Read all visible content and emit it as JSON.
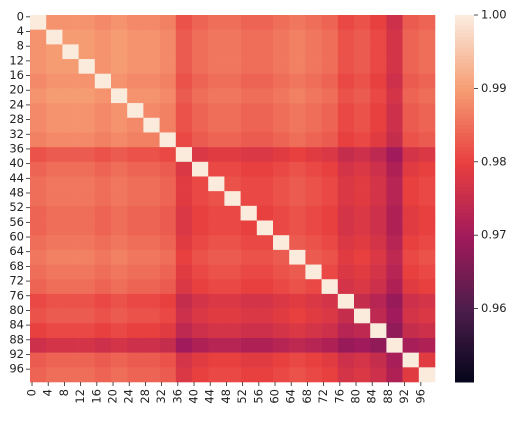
{
  "chart_data": {
    "type": "heatmap",
    "categories": [
      0,
      4,
      8,
      12,
      16,
      20,
      24,
      28,
      32,
      36,
      40,
      44,
      48,
      52,
      56,
      60,
      64,
      68,
      72,
      76,
      80,
      84,
      88,
      92,
      96
    ],
    "values": [
      [
        1,
        0.989,
        0.989,
        0.989,
        0.988,
        0.989,
        0.988,
        0.988,
        0.987,
        0.982,
        0.984,
        0.985,
        0.985,
        0.984,
        0.984,
        0.985,
        0.986,
        0.985,
        0.984,
        0.981,
        0.982,
        0.98,
        0.976,
        0.983,
        0.984
      ],
      [
        0.989,
        1,
        0.99,
        0.99,
        0.989,
        0.99,
        0.989,
        0.989,
        0.988,
        0.983,
        0.985,
        0.986,
        0.986,
        0.985,
        0.985,
        0.986,
        0.987,
        0.986,
        0.985,
        0.982,
        0.983,
        0.981,
        0.977,
        0.984,
        0.985
      ],
      [
        0.989,
        0.99,
        1,
        0.99,
        0.989,
        0.99,
        0.989,
        0.989,
        0.988,
        0.983,
        0.985,
        0.986,
        0.986,
        0.985,
        0.985,
        0.986,
        0.987,
        0.986,
        0.985,
        0.982,
        0.983,
        0.981,
        0.977,
        0.984,
        0.985
      ],
      [
        0.989,
        0.99,
        0.99,
        1,
        0.989,
        0.99,
        0.989,
        0.989,
        0.988,
        0.983,
        0.985,
        0.986,
        0.986,
        0.985,
        0.985,
        0.986,
        0.987,
        0.986,
        0.985,
        0.982,
        0.983,
        0.981,
        0.977,
        0.984,
        0.985
      ],
      [
        0.988,
        0.989,
        0.989,
        0.989,
        1,
        0.989,
        0.988,
        0.988,
        0.987,
        0.982,
        0.984,
        0.985,
        0.985,
        0.984,
        0.984,
        0.985,
        0.986,
        0.985,
        0.984,
        0.981,
        0.982,
        0.98,
        0.976,
        0.983,
        0.984
      ],
      [
        0.989,
        0.99,
        0.99,
        0.99,
        0.989,
        1,
        0.989,
        0.989,
        0.988,
        0.983,
        0.985,
        0.986,
        0.986,
        0.985,
        0.985,
        0.986,
        0.987,
        0.986,
        0.985,
        0.982,
        0.983,
        0.981,
        0.977,
        0.984,
        0.985
      ],
      [
        0.988,
        0.989,
        0.989,
        0.989,
        0.988,
        0.989,
        1,
        0.988,
        0.987,
        0.982,
        0.984,
        0.985,
        0.985,
        0.984,
        0.984,
        0.985,
        0.986,
        0.985,
        0.984,
        0.981,
        0.982,
        0.98,
        0.976,
        0.983,
        0.984
      ],
      [
        0.988,
        0.989,
        0.989,
        0.989,
        0.988,
        0.989,
        0.988,
        1,
        0.987,
        0.982,
        0.984,
        0.985,
        0.985,
        0.984,
        0.984,
        0.985,
        0.986,
        0.985,
        0.984,
        0.981,
        0.982,
        0.98,
        0.976,
        0.983,
        0.984
      ],
      [
        0.987,
        0.988,
        0.988,
        0.988,
        0.987,
        0.988,
        0.987,
        0.987,
        1,
        0.981,
        0.983,
        0.984,
        0.984,
        0.983,
        0.983,
        0.984,
        0.985,
        0.984,
        0.983,
        0.98,
        0.981,
        0.979,
        0.975,
        0.982,
        0.983
      ],
      [
        0.982,
        0.983,
        0.983,
        0.983,
        0.982,
        0.983,
        0.982,
        0.982,
        0.981,
        1,
        0.978,
        0.979,
        0.979,
        0.978,
        0.978,
        0.979,
        0.98,
        0.979,
        0.978,
        0.975,
        0.976,
        0.974,
        0.97,
        0.977,
        0.978
      ],
      [
        0.984,
        0.985,
        0.985,
        0.985,
        0.984,
        0.985,
        0.984,
        0.984,
        0.983,
        0.978,
        1,
        0.981,
        0.981,
        0.98,
        0.98,
        0.981,
        0.982,
        0.981,
        0.98,
        0.977,
        0.978,
        0.976,
        0.972,
        0.979,
        0.98
      ],
      [
        0.985,
        0.986,
        0.986,
        0.986,
        0.985,
        0.986,
        0.985,
        0.985,
        0.984,
        0.979,
        0.981,
        1,
        0.982,
        0.981,
        0.981,
        0.982,
        0.983,
        0.982,
        0.981,
        0.978,
        0.979,
        0.977,
        0.973,
        0.98,
        0.981
      ],
      [
        0.985,
        0.986,
        0.986,
        0.986,
        0.985,
        0.986,
        0.985,
        0.985,
        0.984,
        0.979,
        0.981,
        0.982,
        1,
        0.981,
        0.981,
        0.982,
        0.983,
        0.982,
        0.981,
        0.978,
        0.979,
        0.977,
        0.973,
        0.98,
        0.981
      ],
      [
        0.984,
        0.985,
        0.985,
        0.985,
        0.984,
        0.985,
        0.984,
        0.984,
        0.983,
        0.978,
        0.98,
        0.981,
        0.981,
        1,
        0.98,
        0.981,
        0.982,
        0.981,
        0.98,
        0.977,
        0.978,
        0.976,
        0.972,
        0.979,
        0.98
      ],
      [
        0.984,
        0.985,
        0.985,
        0.985,
        0.984,
        0.985,
        0.984,
        0.984,
        0.983,
        0.978,
        0.98,
        0.981,
        0.981,
        0.98,
        1,
        0.981,
        0.982,
        0.981,
        0.98,
        0.977,
        0.978,
        0.976,
        0.972,
        0.979,
        0.98
      ],
      [
        0.985,
        0.986,
        0.986,
        0.986,
        0.985,
        0.986,
        0.985,
        0.985,
        0.984,
        0.979,
        0.981,
        0.982,
        0.982,
        0.981,
        0.981,
        1,
        0.983,
        0.982,
        0.981,
        0.978,
        0.979,
        0.977,
        0.973,
        0.98,
        0.981
      ],
      [
        0.986,
        0.987,
        0.987,
        0.987,
        0.986,
        0.987,
        0.986,
        0.986,
        0.985,
        0.98,
        0.982,
        0.983,
        0.983,
        0.982,
        0.982,
        0.983,
        1,
        0.983,
        0.982,
        0.979,
        0.98,
        0.978,
        0.974,
        0.981,
        0.982
      ],
      [
        0.985,
        0.986,
        0.986,
        0.986,
        0.985,
        0.986,
        0.985,
        0.985,
        0.984,
        0.979,
        0.981,
        0.982,
        0.982,
        0.981,
        0.981,
        0.982,
        0.983,
        1,
        0.981,
        0.978,
        0.979,
        0.977,
        0.973,
        0.98,
        0.981
      ],
      [
        0.984,
        0.985,
        0.985,
        0.985,
        0.984,
        0.985,
        0.984,
        0.984,
        0.983,
        0.978,
        0.98,
        0.981,
        0.981,
        0.98,
        0.98,
        0.981,
        0.982,
        0.981,
        1,
        0.977,
        0.978,
        0.976,
        0.972,
        0.979,
        0.98
      ],
      [
        0.981,
        0.982,
        0.982,
        0.982,
        0.981,
        0.982,
        0.981,
        0.981,
        0.98,
        0.975,
        0.977,
        0.978,
        0.978,
        0.977,
        0.977,
        0.978,
        0.979,
        0.978,
        0.977,
        1,
        0.975,
        0.973,
        0.969,
        0.976,
        0.977
      ],
      [
        0.982,
        0.983,
        0.983,
        0.983,
        0.982,
        0.983,
        0.982,
        0.982,
        0.981,
        0.976,
        0.978,
        0.979,
        0.979,
        0.978,
        0.978,
        0.979,
        0.98,
        0.979,
        0.978,
        0.975,
        1,
        0.974,
        0.97,
        0.977,
        0.978
      ],
      [
        0.98,
        0.981,
        0.981,
        0.981,
        0.98,
        0.981,
        0.98,
        0.98,
        0.979,
        0.974,
        0.976,
        0.977,
        0.977,
        0.976,
        0.976,
        0.977,
        0.978,
        0.977,
        0.976,
        0.973,
        0.974,
        1,
        0.968,
        0.975,
        0.976
      ],
      [
        0.976,
        0.977,
        0.977,
        0.977,
        0.976,
        0.977,
        0.976,
        0.976,
        0.975,
        0.97,
        0.972,
        0.973,
        0.973,
        0.972,
        0.972,
        0.973,
        0.974,
        0.973,
        0.972,
        0.969,
        0.97,
        0.968,
        1,
        0.971,
        0.972
      ],
      [
        0.983,
        0.984,
        0.984,
        0.984,
        0.983,
        0.984,
        0.983,
        0.983,
        0.982,
        0.977,
        0.979,
        0.98,
        0.98,
        0.979,
        0.979,
        0.98,
        0.981,
        0.98,
        0.979,
        0.976,
        0.977,
        0.975,
        0.971,
        1,
        0.979
      ],
      [
        0.984,
        0.985,
        0.985,
        0.985,
        0.984,
        0.985,
        0.984,
        0.984,
        0.983,
        0.978,
        0.98,
        0.981,
        0.981,
        0.98,
        0.98,
        0.981,
        0.982,
        0.981,
        0.98,
        0.977,
        0.978,
        0.976,
        0.972,
        0.979,
        1
      ]
    ],
    "clim": [
      0.95,
      1.0
    ],
    "cticks": [
      0.96,
      0.97,
      0.98,
      0.99,
      {
        "value": 1.0,
        "label": "1.00"
      }
    ],
    "colormap": [
      "#03051a",
      "#4c1d4b",
      "#a11a5b",
      "#e83f3f",
      "#f69c73",
      "#faebdd"
    ]
  }
}
